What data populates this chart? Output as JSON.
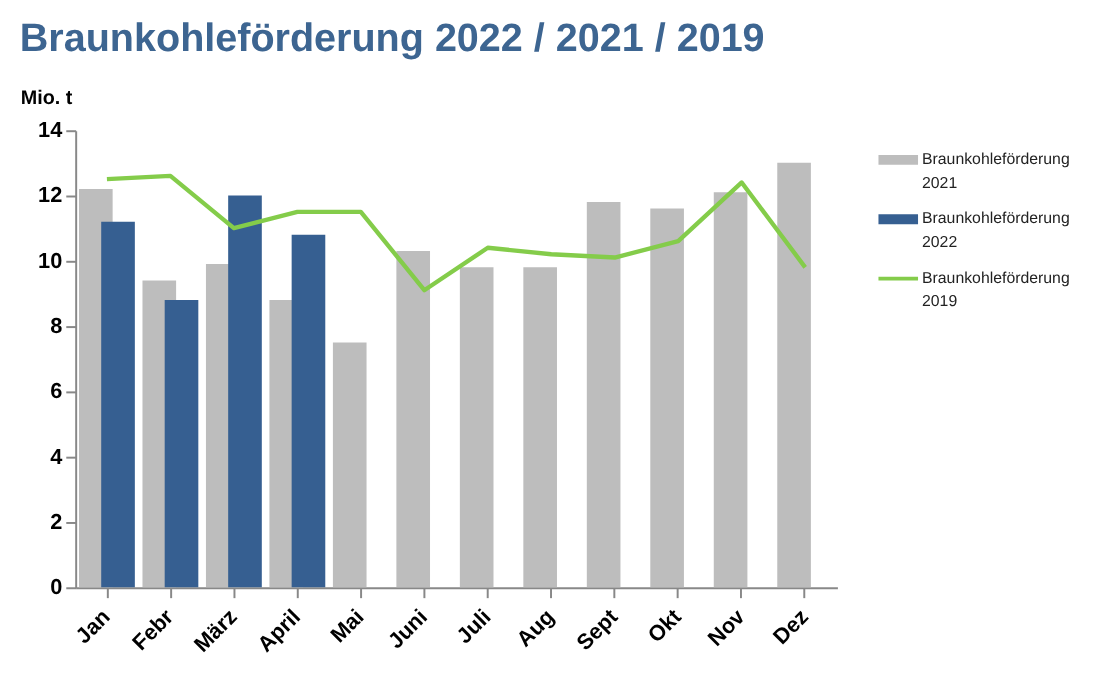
{
  "chart_data": {
    "type": "bar",
    "title": "Braunkohleförderung 2022 / 2021 / 2019",
    "ylabel": "Mio. t",
    "categories": [
      "Jan",
      "Febr",
      "März",
      "April",
      "Mai",
      "Juni",
      "Juli",
      "Aug",
      "Sept",
      "Okt",
      "Nov",
      "Dez"
    ],
    "series": [
      {
        "name": "Braunkohleförderung 2021",
        "color": "#bdbdbd",
        "values": [
          12.2,
          9.4,
          9.9,
          8.8,
          7.5,
          10.3,
          9.8,
          9.8,
          11.8,
          11.6,
          12.1,
          13.0
        ]
      },
      {
        "name": "Braunkohleförderung 2022",
        "color": "#365f91",
        "values": [
          11.2,
          8.8,
          12.0,
          10.8,
          null,
          null,
          null,
          null,
          null,
          null,
          null,
          null
        ]
      },
      {
        "name": "Braunkohleförderung 2019",
        "type": "line",
        "color": "#84cc4a",
        "values": [
          12.5,
          12.6,
          11.0,
          11.5,
          11.5,
          9.1,
          10.4,
          10.2,
          10.1,
          10.6,
          12.4,
          9.8
        ]
      }
    ],
    "ylim": [
      0,
      14
    ],
    "yticks": [
      0,
      2,
      4,
      6,
      8,
      10,
      12,
      14
    ],
    "grid": false,
    "legend": "right"
  }
}
